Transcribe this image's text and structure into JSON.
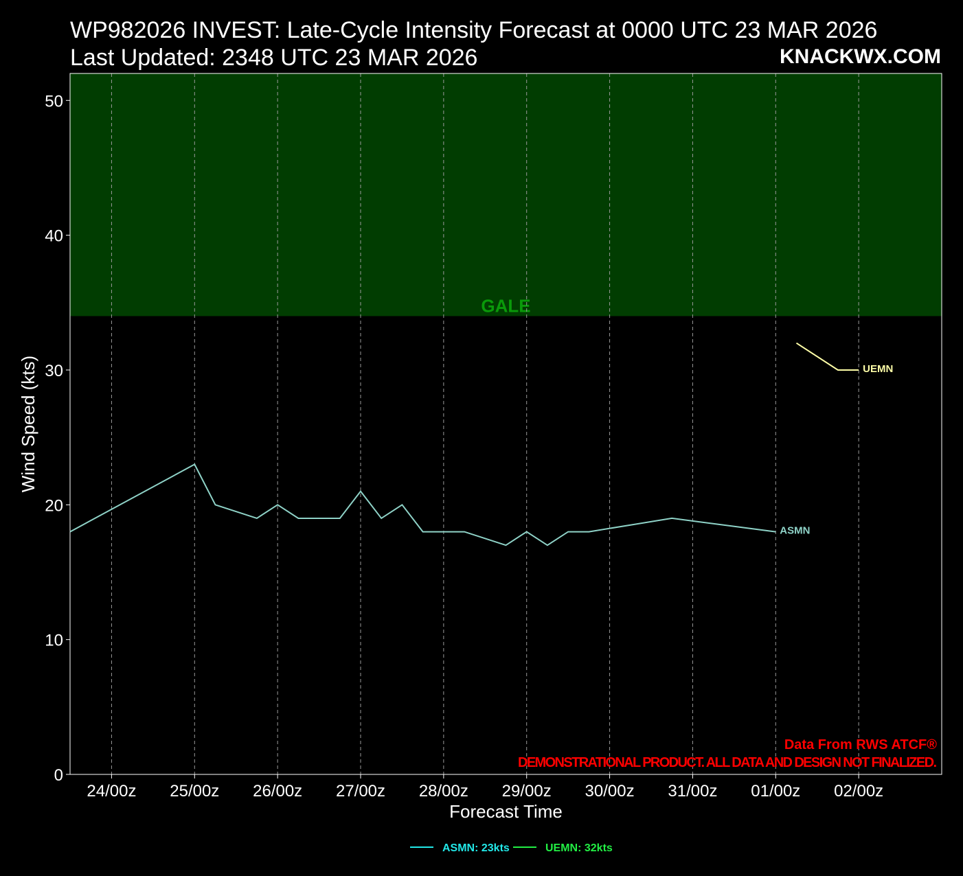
{
  "header": {
    "title_line1": "WP982026 INVEST: Late-Cycle Intensity Forecast at 0000 UTC 23 MAR 2026",
    "title_line2": "Last Updated: 2348 UTC 23 MAR 2026",
    "brand": "KNACKWX.COM"
  },
  "chart_data": {
    "type": "line",
    "xlabel": "Forecast Time",
    "ylabel": "Wind Speed (kts)",
    "ylim": [
      0,
      52
    ],
    "xlim_hours": [
      -12,
      240
    ],
    "x_unit": "hours after 24/00z",
    "x_ticks": [
      {
        "h": 0,
        "label": "24/00z"
      },
      {
        "h": 24,
        "label": "25/00z"
      },
      {
        "h": 48,
        "label": "26/00z"
      },
      {
        "h": 72,
        "label": "27/00z"
      },
      {
        "h": 96,
        "label": "28/00z"
      },
      {
        "h": 120,
        "label": "29/00z"
      },
      {
        "h": 144,
        "label": "30/00z"
      },
      {
        "h": 168,
        "label": "31/00z"
      },
      {
        "h": 192,
        "label": "01/00z"
      },
      {
        "h": 216,
        "label": "02/00z"
      }
    ],
    "y_ticks": [
      0,
      10,
      20,
      30,
      40,
      50
    ],
    "grid": "vertical dashed",
    "bands": [
      {
        "label": "GALE",
        "from": 34,
        "to": 52,
        "color": "#013d01",
        "label_color": "#0a9a0a"
      }
    ],
    "series": [
      {
        "name": "ASMN",
        "color": "#8fd3c8",
        "x": [
          -12,
          24,
          30,
          42,
          48,
          54,
          66,
          72,
          78,
          84,
          90,
          102,
          114,
          120,
          126,
          132,
          138,
          162,
          192
        ],
        "y": [
          18,
          23,
          20,
          19,
          20,
          19,
          19,
          21,
          19,
          20,
          18,
          18,
          17,
          18,
          17,
          18,
          18,
          19,
          18
        ]
      },
      {
        "name": "UEMN",
        "color": "#ffffa8",
        "x": [
          198,
          210,
          216
        ],
        "y": [
          32,
          30,
          30
        ]
      }
    ],
    "legend": {
      "placement": "bottom-center",
      "items": [
        {
          "label": "ASMN: 23kts",
          "color": "#22e8e8"
        },
        {
          "label": "UEMN: 32kts",
          "color": "#22ee44"
        }
      ]
    },
    "annotations": {
      "source": "Data From RWS ATCF®",
      "disclaimer": "DEMONSTRATIONAL PRODUCT. ALL DATA AND DESIGN NOT FINALIZED.",
      "color": "#ff0000"
    }
  }
}
